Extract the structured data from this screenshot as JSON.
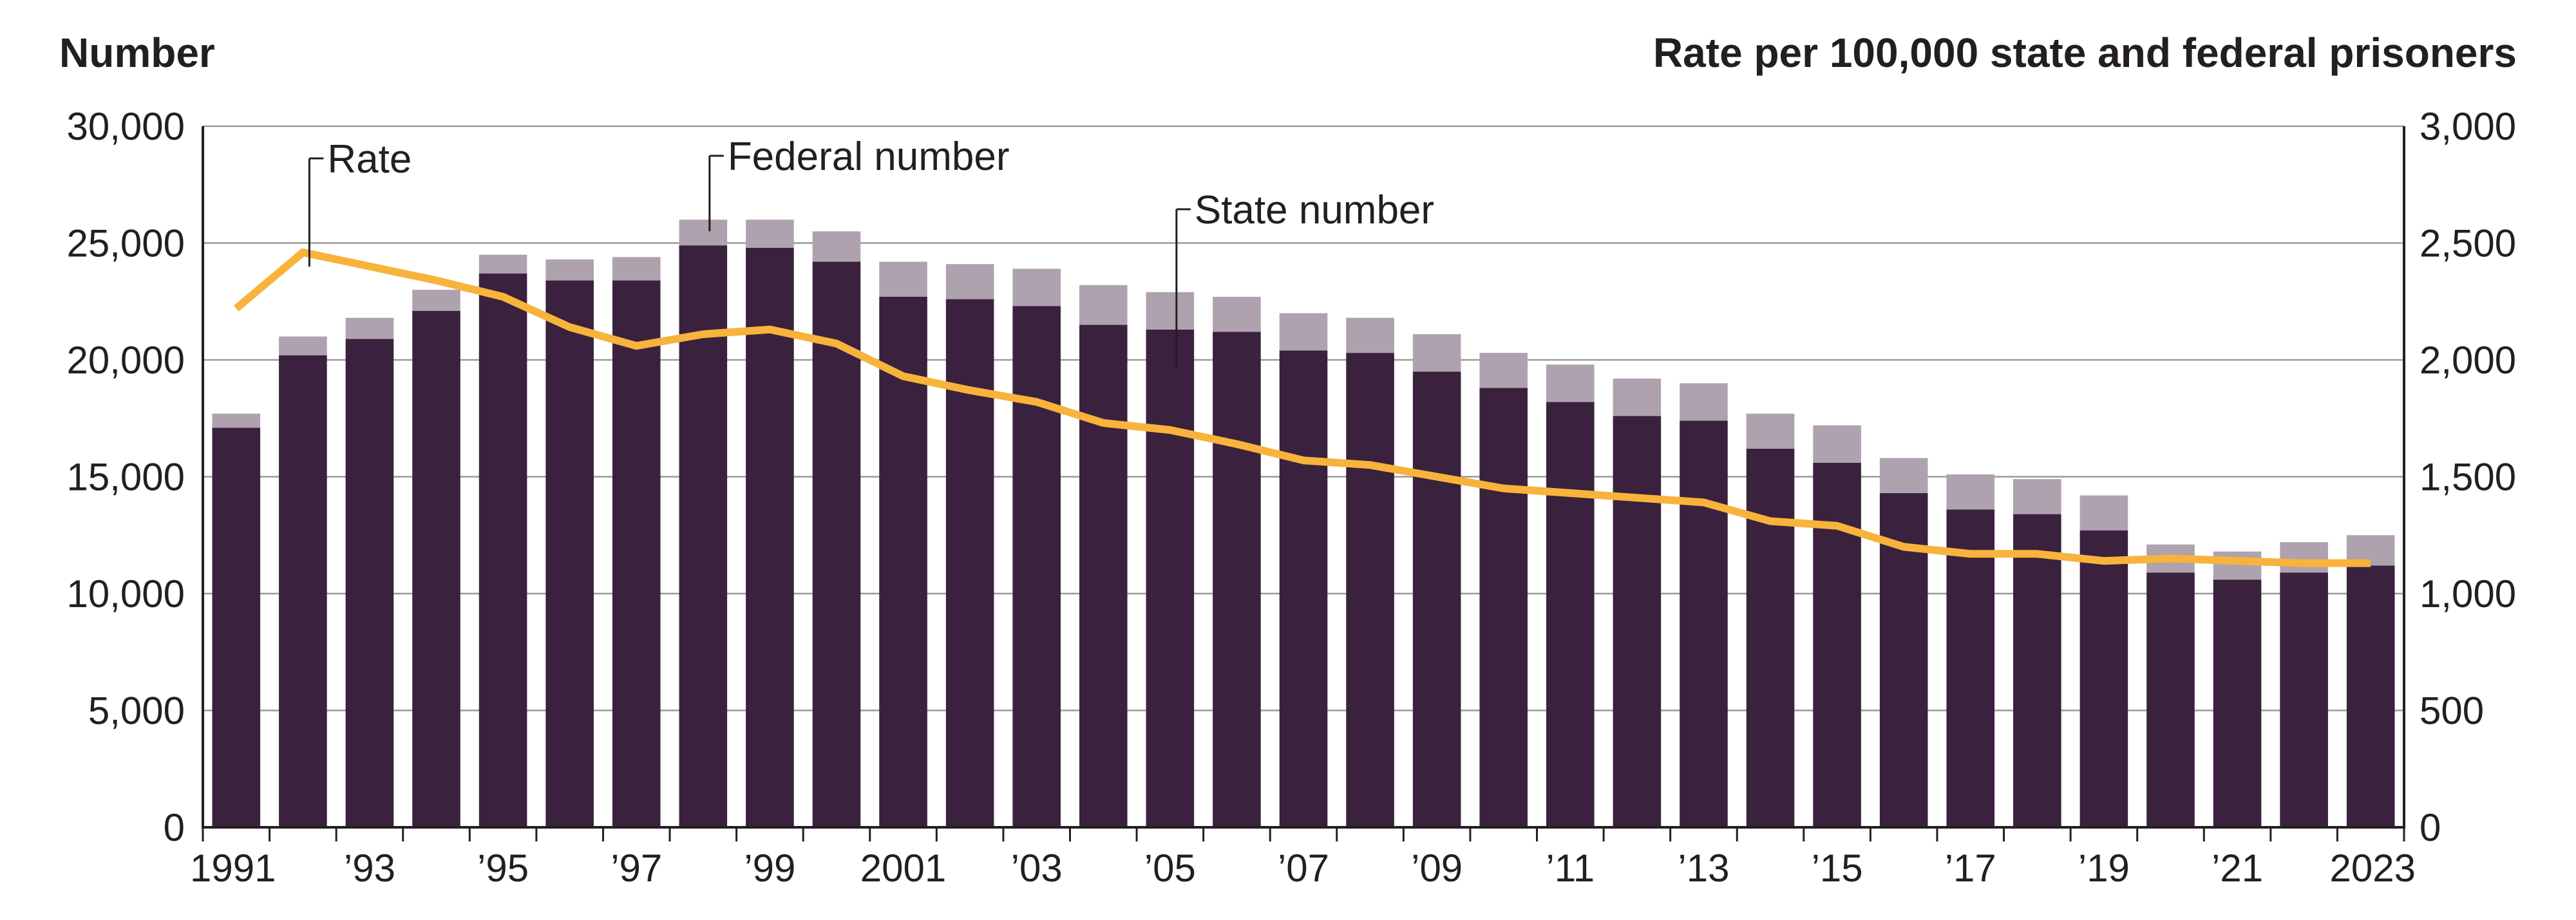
{
  "chart_data": {
    "type": "bar",
    "stacked": true,
    "left_axis_title": "Number",
    "right_axis_title": "Rate per 100,000 state and federal prisoners",
    "ylim_left": [
      0,
      30000
    ],
    "ylim_right": [
      0,
      3000
    ],
    "yticks_left": [
      "0",
      "5,000",
      "10,000",
      "15,000",
      "20,000",
      "25,000",
      "30,000"
    ],
    "yticks_right": [
      "0",
      "500",
      "1,000",
      "1,500",
      "2,000",
      "2,500",
      "3,000"
    ],
    "grid": true,
    "years": [
      1991,
      1992,
      1993,
      1994,
      1995,
      1996,
      1997,
      1998,
      1999,
      2000,
      2001,
      2002,
      2003,
      2004,
      2005,
      2006,
      2007,
      2008,
      2009,
      2010,
      2011,
      2012,
      2013,
      2014,
      2015,
      2016,
      2017,
      2018,
      2019,
      2020,
      2021,
      2022,
      2023
    ],
    "xtick_labels": [
      "1991",
      "",
      "’93",
      "",
      "’95",
      "",
      "’97",
      "",
      "’99",
      "",
      "2001",
      "",
      "’03",
      "",
      "’05",
      "",
      "’07",
      "",
      "’09",
      "",
      "’11",
      "",
      "’13",
      "",
      "’15",
      "",
      "’17",
      "",
      "’19",
      "",
      "’21",
      "",
      "2023"
    ],
    "series": [
      {
        "name": "State number",
        "color": "#3a213d",
        "values": [
          17100,
          20200,
          20900,
          22100,
          23700,
          23400,
          23400,
          24900,
          24800,
          24200,
          22700,
          22600,
          22300,
          21500,
          21300,
          21200,
          20400,
          20300,
          19500,
          18800,
          18200,
          17600,
          17400,
          16200,
          15600,
          14300,
          13600,
          13400,
          12700,
          10900,
          10600,
          10900,
          11200
        ]
      },
      {
        "name": "Federal number",
        "color": "#aea2ae",
        "values": [
          600,
          800,
          900,
          900,
          800,
          900,
          1000,
          1100,
          1200,
          1300,
          1500,
          1500,
          1600,
          1700,
          1600,
          1500,
          1600,
          1500,
          1600,
          1500,
          1600,
          1600,
          1600,
          1500,
          1600,
          1500,
          1500,
          1500,
          1500,
          1200,
          1200,
          1300,
          1300
        ]
      },
      {
        "name": "Rate",
        "type": "line",
        "axis": "right",
        "color": "#f7b33b",
        "values": [
          2220,
          2460,
          2400,
          2340,
          2270,
          2140,
          2060,
          2110,
          2130,
          2070,
          1930,
          1870,
          1820,
          1730,
          1700,
          1640,
          1570,
          1550,
          1500,
          1450,
          1430,
          1410,
          1390,
          1310,
          1290,
          1200,
          1170,
          1170,
          1140,
          1150,
          1140,
          1130,
          1130
        ]
      }
    ],
    "annotations": [
      {
        "text": "Rate",
        "series": "Rate",
        "year": 1992
      },
      {
        "text": "Federal number",
        "series": "Federal number",
        "year": 1998
      },
      {
        "text": "State number",
        "series": "State number",
        "year": 2005
      }
    ]
  }
}
